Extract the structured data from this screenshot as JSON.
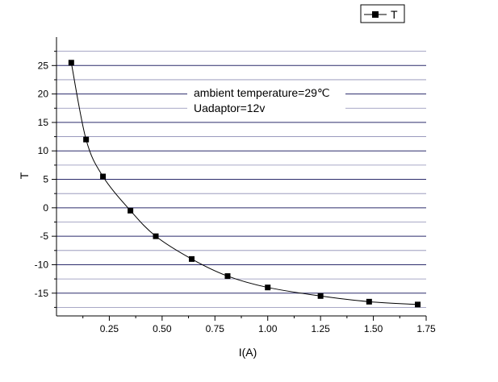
{
  "chart_data": {
    "type": "line",
    "title": "",
    "xlabel": "I(A)",
    "ylabel": "T",
    "xlim": [
      0.0,
      1.75
    ],
    "ylim": [
      -19,
      30
    ],
    "x_ticks": [
      0.25,
      0.5,
      0.75,
      1.0,
      1.25,
      1.5,
      1.75
    ],
    "x_tick_labels": [
      "0.25",
      "0.50",
      "0.75",
      "1.00",
      "1.25",
      "1.50",
      "1.75"
    ],
    "y_ticks": [
      25,
      20,
      15,
      10,
      5,
      0,
      -5,
      -10,
      -15
    ],
    "y_tick_labels": [
      "25",
      "20",
      "15",
      "10",
      "5",
      "0",
      "-5",
      "-10",
      "-15"
    ],
    "grid": "horizontal",
    "legend_position": "top-right",
    "marker": "square",
    "annotations": [
      "ambient temperature=29℃",
      "Uadaptor=12v"
    ],
    "series": [
      {
        "name": "T",
        "color": "#000000",
        "x": [
          0.07,
          0.14,
          0.22,
          0.35,
          0.47,
          0.64,
          0.81,
          1.0,
          1.25,
          1.48,
          1.71
        ],
        "y": [
          25.5,
          12.0,
          5.5,
          -0.5,
          -5.0,
          -9.0,
          -12.0,
          -14.0,
          -15.5,
          -16.5,
          -17.0
        ]
      }
    ]
  },
  "colors": {
    "grid_dark": "#2b2b6b",
    "grid_light": "#8c8cb4",
    "axis": "#000000"
  }
}
